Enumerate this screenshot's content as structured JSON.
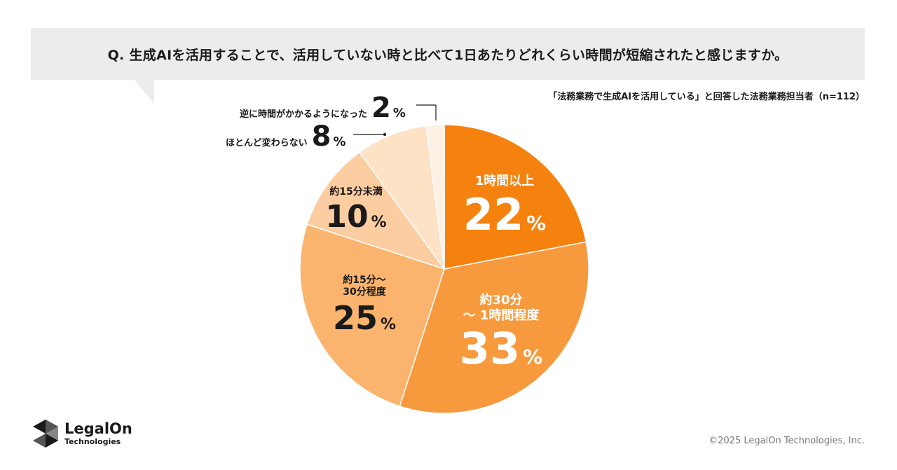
{
  "header": {
    "question": "Q. 生成AIを活用することで、活用していない時と比べて1日あたりどれくらい時間が短縮されたと感じますか。",
    "subtitle": "「法務業務で生成AIを活用している」と回答した法務業務担当者（n=112）"
  },
  "chart_data": {
    "type": "pie",
    "title": "Q. 生成AIを活用することで、活用していない時と比べて1日あたりどれくらい時間が短縮されたと感じますか。",
    "categories": [
      "1時間以上",
      "約30分～1時間程度",
      "約15分～30分程度",
      "約15分未満",
      "ほとんど変わらない",
      "逆に時間がかかるようになった"
    ],
    "values": [
      22,
      33,
      25,
      10,
      8,
      2
    ],
    "colors": [
      "#f5820f",
      "#f79a3d",
      "#fab46d",
      "#fccda0",
      "#fde2c6",
      "#fef1e4"
    ],
    "legend": "none"
  },
  "slices": [
    {
      "cat": "1時間以上",
      "num": "22",
      "pct": "%"
    },
    {
      "cat_line1": "約30分",
      "cat_line2": "～ 1時間程度",
      "num": "33",
      "pct": "%"
    },
    {
      "cat_line1": "約15分～",
      "cat_line2": "30分程度",
      "num": "25",
      "pct": "%"
    },
    {
      "cat": "約15分未満",
      "num": "10",
      "pct": "%"
    },
    {
      "cat": "ほとんど変わらない",
      "num": "8",
      "pct": "%"
    },
    {
      "cat": "逆に時間がかかるようになった",
      "num": "2",
      "pct": "%"
    }
  ],
  "footer": {
    "logo_name": "LegalOn",
    "logo_sub": "Technologies",
    "copyright": "©2025 LegalOn Technologies, Inc."
  },
  "colors": {
    "banner_bg": "#ececec",
    "text": "#1a1a1a",
    "leader": "#1a1a1a"
  },
  "icons": {
    "logo": "legalon-hexagon-logo-icon"
  }
}
